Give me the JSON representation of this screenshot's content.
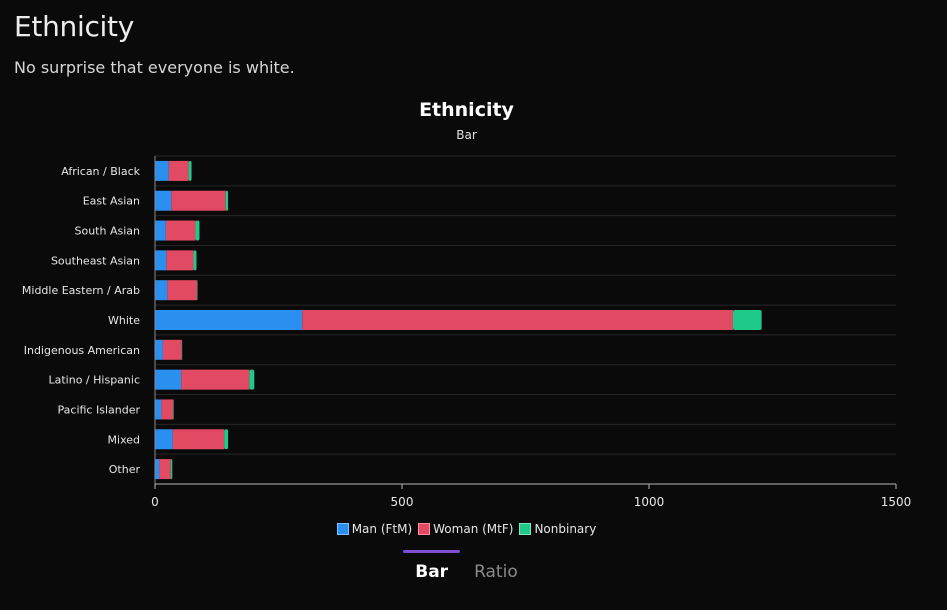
{
  "page": {
    "title": "Ethnicity",
    "subtitle": "No surprise that everyone is white."
  },
  "chart_data": {
    "type": "bar",
    "orientation": "horizontal",
    "stacked": true,
    "title": "Ethnicity",
    "subtitle": "Bar",
    "categories": [
      "African / Black",
      "East Asian",
      "South Asian",
      "Southeast Asian",
      "Middle Eastern / Arab",
      "White",
      "Indigenous American",
      "Latino / Hispanic",
      "Pacific Islander",
      "Mixed",
      "Other"
    ],
    "series": [
      {
        "name": "Man (FtM)",
        "color": "#2b8ff0",
        "values": [
          28,
          33,
          22,
          23,
          25,
          298,
          16,
          53,
          13,
          36,
          9
        ]
      },
      {
        "name": "Woman (MtF)",
        "color": "#e14a62",
        "values": [
          40,
          110,
          60,
          55,
          60,
          872,
          38,
          138,
          24,
          104,
          23
        ]
      },
      {
        "name": "Nonbinary",
        "color": "#1fc98a",
        "values": [
          6,
          5,
          8,
          6,
          1,
          58,
          1,
          10,
          1,
          8,
          3
        ]
      }
    ],
    "xlim": [
      0,
      1500
    ],
    "xticks": [
      0,
      500,
      1000,
      1500
    ],
    "grid": true,
    "legend_position": "bottom"
  },
  "tabs": [
    {
      "label": "Bar",
      "active": true
    },
    {
      "label": "Ratio",
      "active": false
    }
  ]
}
